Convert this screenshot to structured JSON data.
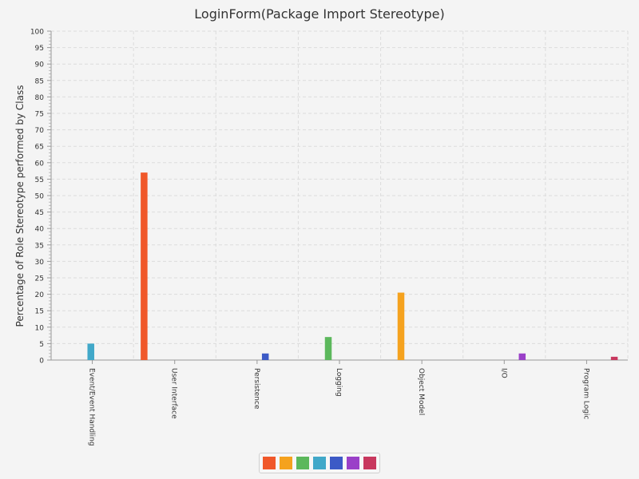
{
  "chart_data": {
    "type": "bar",
    "title": "LoginForm(Package Import Stereotype)",
    "xlabel": "",
    "ylabel": "Percentage of Role Stereotype performed by Class",
    "ylim": [
      0,
      100
    ],
    "ytick_step": 5,
    "grid": true,
    "categories": [
      "Event/Event Handling",
      "User Interface",
      "Persistence",
      "Logging",
      "Object Model",
      "I/O",
      "Program Logic"
    ],
    "series": [
      {
        "color": "#f0582a",
        "values": [
          0,
          57,
          0,
          0,
          0,
          0,
          0
        ]
      },
      {
        "color": "#f5a21e",
        "values": [
          0,
          0,
          0,
          0,
          20.5,
          0,
          0
        ]
      },
      {
        "color": "#5cb85c",
        "values": [
          0,
          0,
          0,
          7,
          0,
          0,
          0
        ]
      },
      {
        "color": "#41a8c9",
        "values": [
          5,
          0,
          0,
          0,
          0,
          0,
          0
        ]
      },
      {
        "color": "#3c5ac6",
        "values": [
          0,
          0,
          2,
          0,
          0,
          0,
          0
        ]
      },
      {
        "color": "#9a40c8",
        "values": [
          0,
          0,
          0,
          0,
          0,
          2,
          0
        ]
      },
      {
        "color": "#c8385e",
        "values": [
          0,
          0,
          0,
          0,
          0,
          0,
          1
        ]
      }
    ],
    "legend": "bottom"
  }
}
